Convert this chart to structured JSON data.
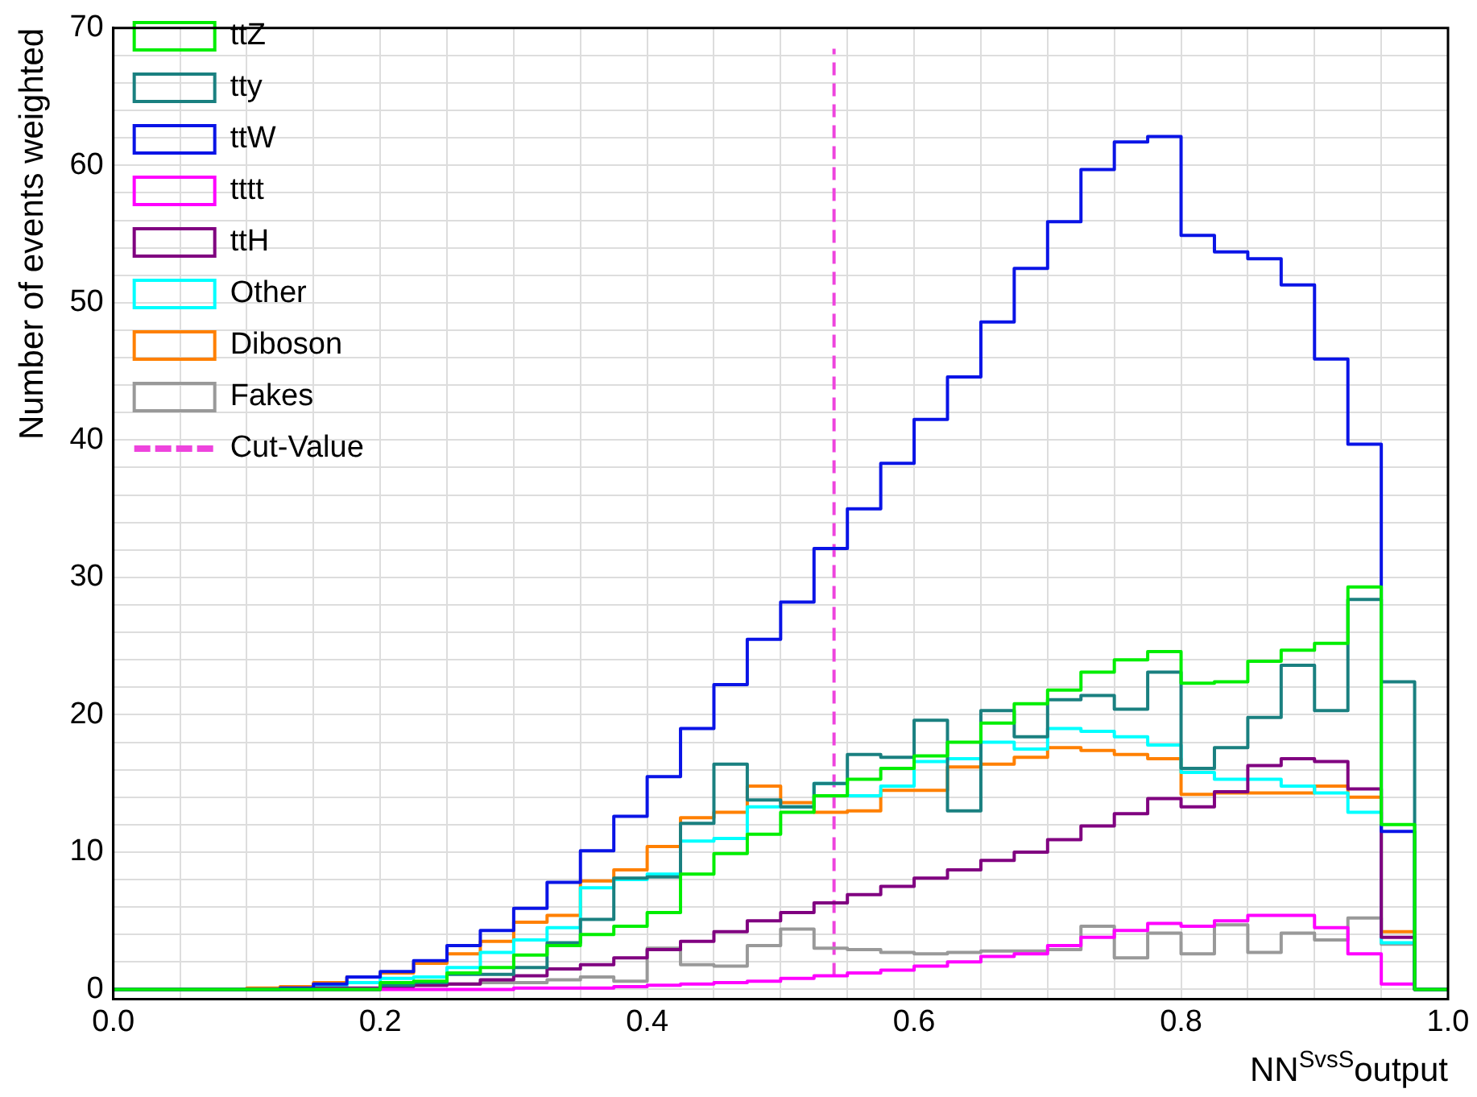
{
  "chart_data": {
    "type": "histogram",
    "xlabel": "NN$^{SvsS}$output",
    "ylabel": "Number of events weighted",
    "bins": [
      0,
      0.025,
      0.05,
      0.075,
      0.1,
      0.125,
      0.15,
      0.175,
      0.2,
      0.225,
      0.25,
      0.275,
      0.3,
      0.325,
      0.35,
      0.375,
      0.4,
      0.425,
      0.45,
      0.475,
      0.5,
      0.525,
      0.55,
      0.575,
      0.6,
      0.625,
      0.65,
      0.675,
      0.7,
      0.725,
      0.75,
      0.775,
      0.8,
      0.825,
      0.85,
      0.875,
      0.9,
      0.925,
      0.95,
      0.975,
      1.0
    ],
    "series": [
      {
        "name": "ttZ",
        "color": "#00ee00",
        "values": [
          0,
          0,
          0,
          0,
          0,
          0,
          0,
          0,
          0.5,
          0.6,
          1.2,
          1.6,
          2.5,
          3.2,
          4.0,
          4.6,
          5.6,
          8.4,
          9.9,
          11.3,
          12.9,
          14.1,
          15.3,
          16.1,
          17.0,
          18.0,
          19.4,
          20.8,
          21.8,
          23.1,
          24.0,
          24.6,
          22.3,
          22.4,
          23.9,
          24.7,
          25.2,
          29.3,
          12.0,
          0
        ]
      },
      {
        "name": "tty",
        "color": "#1a8080",
        "values": [
          0,
          0,
          0,
          0,
          0,
          0,
          0,
          0,
          0.3,
          0.5,
          1.1,
          1.1,
          1.6,
          3.4,
          5.1,
          8.1,
          8.2,
          12.1,
          16.4,
          13.8,
          13.3,
          15.0,
          17.1,
          16.9,
          19.6,
          13.0,
          20.3,
          18.4,
          21.1,
          21.4,
          20.4,
          23.1,
          16.1,
          17.6,
          19.8,
          23.6,
          20.3,
          28.4,
          22.4,
          0
        ]
      },
      {
        "name": "ttW",
        "color": "#0a14e6",
        "values": [
          0,
          0,
          0,
          0,
          0,
          0.1,
          0.4,
          0.9,
          1.3,
          2.1,
          3.2,
          4.3,
          5.9,
          7.8,
          10.1,
          12.6,
          15.5,
          19.0,
          22.2,
          25.5,
          28.2,
          32.1,
          35.0,
          38.3,
          41.5,
          44.6,
          48.6,
          52.5,
          55.9,
          59.7,
          61.7,
          62.1,
          54.9,
          53.7,
          53.2,
          51.3,
          45.9,
          39.7,
          11.5,
          0
        ]
      },
      {
        "name": "tttt",
        "color": "#ff00ff",
        "values": [
          0,
          0,
          0,
          0,
          0,
          0,
          0,
          0,
          0,
          0,
          0,
          0,
          0.1,
          0.1,
          0.1,
          0.2,
          0.3,
          0.4,
          0.5,
          0.6,
          0.8,
          1.0,
          1.2,
          1.4,
          1.7,
          2.0,
          2.4,
          2.6,
          3.2,
          3.8,
          4.3,
          4.8,
          4.6,
          5.0,
          5.4,
          5.4,
          4.5,
          2.6,
          0.4,
          0
        ]
      },
      {
        "name": "ttH",
        "color": "#800080",
        "values": [
          0,
          0,
          0,
          0,
          0,
          0,
          0.1,
          0.1,
          0.2,
          0.3,
          0.4,
          0.7,
          1.0,
          1.5,
          1.8,
          2.3,
          2.9,
          3.5,
          4.2,
          5.0,
          5.6,
          6.3,
          6.9,
          7.5,
          8.1,
          8.7,
          9.4,
          10.0,
          10.9,
          11.9,
          12.8,
          13.9,
          13.3,
          14.4,
          16.3,
          16.8,
          16.6,
          14.6,
          3.8,
          0
        ]
      },
      {
        "name": "Other",
        "color": "#00ffff",
        "values": [
          0,
          0,
          0,
          0,
          0,
          0,
          0.2,
          0.5,
          0.8,
          0.9,
          1.6,
          2.7,
          3.6,
          4.5,
          7.4,
          8.0,
          8.4,
          10.8,
          11.0,
          13.3,
          13.3,
          15.0,
          14.1,
          14.8,
          16.6,
          16.8,
          18.0,
          17.5,
          19.0,
          18.8,
          18.4,
          17.8,
          15.8,
          15.3,
          15.3,
          14.8,
          14.3,
          12.9,
          3.4,
          0
        ]
      },
      {
        "name": "Diboson",
        "color": "#ff8000",
        "values": [
          0,
          0,
          0,
          0,
          0.1,
          0.2,
          0.5,
          0.9,
          1.2,
          1.9,
          2.6,
          3.5,
          4.9,
          5.4,
          7.9,
          8.7,
          10.4,
          12.5,
          12.9,
          14.8,
          13.6,
          12.9,
          13.0,
          14.5,
          14.5,
          16.2,
          16.4,
          16.9,
          17.6,
          17.4,
          17.1,
          16.8,
          14.2,
          14.3,
          14.3,
          14.3,
          14.8,
          14.0,
          4.2,
          0
        ]
      },
      {
        "name": "Fakes",
        "color": "#999999",
        "values": [
          0,
          0,
          0,
          0,
          0,
          0,
          0,
          0,
          0.3,
          0.3,
          0.4,
          0.5,
          0.5,
          0.7,
          0.9,
          0.6,
          3.0,
          1.8,
          1.7,
          3.2,
          4.4,
          3.0,
          2.9,
          2.7,
          2.6,
          2.7,
          2.8,
          2.8,
          2.9,
          4.6,
          2.3,
          4.1,
          2.6,
          4.7,
          2.7,
          4.1,
          3.6,
          5.2,
          3.3,
          0
        ]
      },
      {
        "name": "Cut-Value",
        "type": "line",
        "color": "#ee44dd",
        "line_style": "dashed",
        "x": [
          0.54,
          0.54
        ],
        "values": [
          1,
          68.5
        ]
      }
    ],
    "xlim": [
      0,
      1
    ],
    "xticks": [
      {
        "value": 0,
        "label": "0.0"
      },
      {
        "value": 0.05,
        "label": null
      },
      {
        "value": 0.1,
        "label": null
      },
      {
        "value": 0.15,
        "label": null
      },
      0.2,
      {
        "value": 0.25,
        "label": null
      },
      {
        "value": 0.3,
        "label": null
      },
      {
        "value": 0.35,
        "label": null
      },
      0.4,
      {
        "value": 0.45,
        "label": null
      },
      {
        "value": 0.5,
        "label": null
      },
      {
        "value": 0.55,
        "label": null
      },
      0.6,
      {
        "value": 0.65,
        "label": null
      },
      {
        "value": 0.7,
        "label": null
      },
      {
        "value": 0.75,
        "label": null
      },
      0.8,
      {
        "value": 0.85,
        "label": null
      },
      {
        "value": 0.9,
        "label": null
      },
      {
        "value": 0.95,
        "label": null
      },
      {
        "value": 1,
        "label": "1.0"
      }
    ],
    "ylim": [
      -0.7,
      70
    ],
    "yticks": [
      0,
      {
        "value": 2,
        "label": null
      },
      {
        "value": 4,
        "label": null
      },
      {
        "value": 6,
        "label": null
      },
      {
        "value": 8,
        "label": null
      },
      10,
      {
        "value": 12,
        "label": null
      },
      {
        "value": 14,
        "label": null
      },
      {
        "value": 16,
        "label": null
      },
      {
        "value": 18,
        "label": null
      },
      20,
      {
        "value": 22,
        "label": null
      },
      {
        "value": 24,
        "label": null
      },
      {
        "value": 26,
        "label": null
      },
      {
        "value": 28,
        "label": null
      },
      30,
      {
        "value": 32,
        "label": null
      },
      {
        "value": 34,
        "label": null
      },
      {
        "value": 36,
        "label": null
      },
      {
        "value": 38,
        "label": null
      },
      40,
      {
        "value": 42,
        "label": null
      },
      {
        "value": 44,
        "label": null
      },
      {
        "value": 46,
        "label": null
      },
      {
        "value": 48,
        "label": null
      },
      50,
      {
        "value": 52,
        "label": null
      },
      {
        "value": 54,
        "label": null
      },
      {
        "value": 56,
        "label": null
      },
      {
        "value": 58,
        "label": null
      },
      60,
      {
        "value": 62,
        "label": null
      },
      {
        "value": 64,
        "label": null
      },
      {
        "value": 66,
        "label": null
      },
      {
        "value": 68,
        "label": null
      },
      70
    ],
    "grid": true,
    "legend": "top left",
    "line_style": "solid"
  }
}
